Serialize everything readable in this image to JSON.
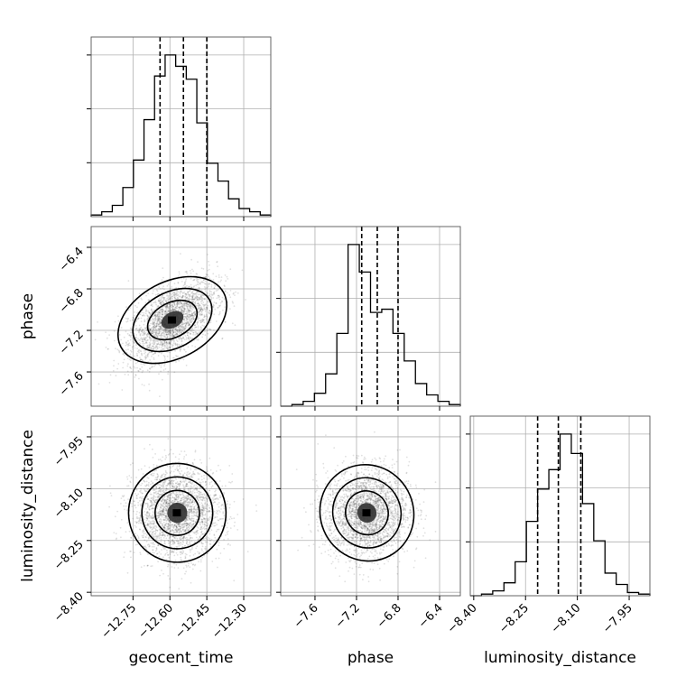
{
  "chart_data": {
    "type": "corner",
    "parameters": [
      "geocent_time",
      "phase",
      "luminosity_distance"
    ],
    "axis_labels": [
      "geocent_time",
      "phase",
      "luminosity_distance"
    ],
    "ranges": {
      "geocent_time": [
        -12.92,
        -12.19
      ],
      "phase": [
        -7.93,
        -6.2
      ],
      "luminosity_distance": [
        -8.41,
        -7.89
      ]
    },
    "ticks": {
      "geocent_time": [
        -12.75,
        -12.6,
        -12.45,
        -12.3
      ],
      "phase": [
        -7.6,
        -7.2,
        -6.8,
        -6.4
      ],
      "luminosity_distance": [
        -8.4,
        -8.25,
        -8.1,
        -7.95
      ]
    },
    "tick_labels": {
      "geocent_time": [
        "−12.75",
        "−12.60",
        "−12.45",
        "−12.30"
      ],
      "phase": [
        "−7.6",
        "−7.2",
        "−6.8",
        "−6.4"
      ],
      "luminosity_distance": [
        "−8.40",
        "−8.25",
        "−8.10",
        "−7.95"
      ]
    },
    "quantiles": {
      "geocent_time": [
        -12.64,
        -12.545,
        -12.45
      ],
      "phase": [
        -7.15,
        -7.0,
        -6.8
      ],
      "luminosity_distance": [
        -8.215,
        -8.155,
        -8.09
      ]
    },
    "histograms": {
      "geocent_time": [
        0.01,
        0.03,
        0.07,
        0.18,
        0.35,
        0.6,
        0.87,
        1.0,
        0.93,
        0.85,
        0.58,
        0.33,
        0.22,
        0.11,
        0.05,
        0.03,
        0.01
      ],
      "phase": [
        0.0,
        0.01,
        0.03,
        0.08,
        0.2,
        0.45,
        1.0,
        0.83,
        0.58,
        0.6,
        0.45,
        0.28,
        0.14,
        0.07,
        0.03,
        0.01
      ],
      "luminosity_distance": [
        0.0,
        0.01,
        0.03,
        0.08,
        0.21,
        0.46,
        0.66,
        0.78,
        1.0,
        0.88,
        0.57,
        0.34,
        0.14,
        0.07,
        0.02,
        0.01
      ]
    },
    "joint_peaks": {
      "phase_vs_geocent_time": {
        "x": -12.59,
        "y": -7.1
      },
      "luminosity_distance_vs_geocent_time": {
        "x": -12.57,
        "y": -8.17
      },
      "luminosity_distance_vs_phase": {
        "x": -7.1,
        "y": -8.17
      }
    },
    "grid": true,
    "title": "",
    "legend": "none"
  }
}
